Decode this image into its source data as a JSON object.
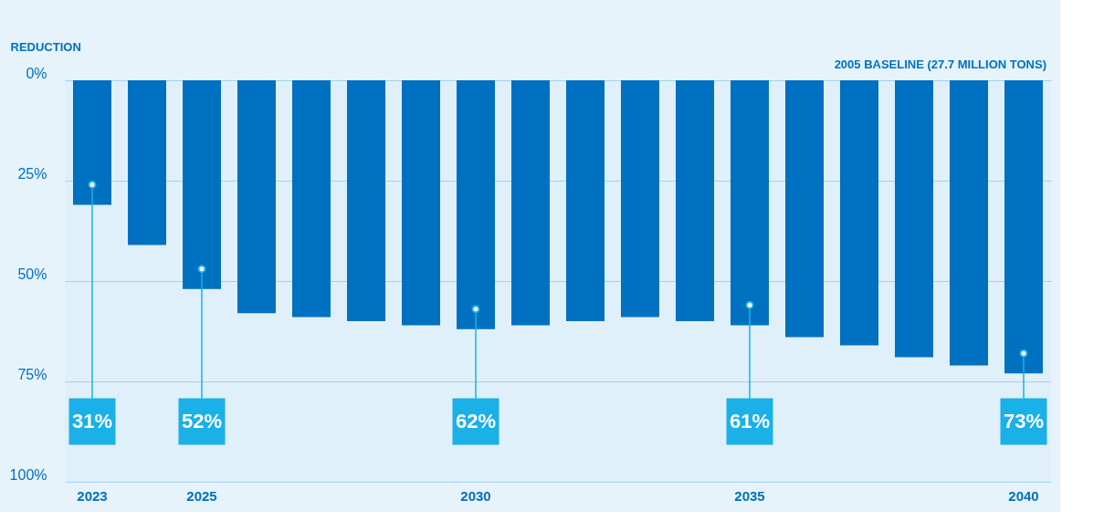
{
  "chart_data": {
    "type": "bar",
    "ylabel": "REDUCTION",
    "categories": [
      "2023",
      null,
      "2025",
      null,
      null,
      null,
      null,
      "2030",
      null,
      null,
      null,
      null,
      "2035",
      null,
      null,
      null,
      null,
      "2040"
    ],
    "values": [
      31,
      41,
      52,
      58,
      59,
      60,
      61,
      62,
      61,
      60,
      59,
      60,
      61,
      64,
      66,
      69,
      71,
      73
    ],
    "value_labels": [
      "31%",
      null,
      "52%",
      null,
      null,
      null,
      null,
      "62%",
      null,
      null,
      null,
      null,
      "61%",
      null,
      null,
      null,
      null,
      "73%"
    ],
    "color": "#0070c0",
    "ylim": [
      100,
      0
    ],
    "yticks": [
      {
        "value": 0,
        "label": "0%"
      },
      {
        "value": 25,
        "label": "25%"
      },
      {
        "value": 50,
        "label": "50%"
      },
      {
        "value": 75,
        "label": "75%"
      },
      {
        "value": 100,
        "label": "100%"
      }
    ],
    "grid": "y",
    "annotations": [
      "2005 BASELINE (27.7 MILLION TONS)"
    ]
  }
}
